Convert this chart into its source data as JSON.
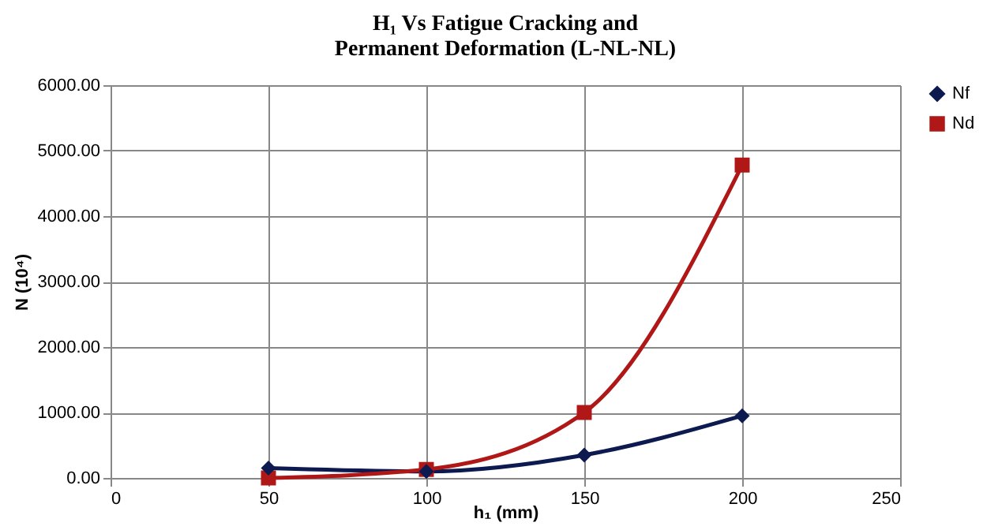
{
  "chart_data": {
    "type": "line",
    "title": "H₁ Vs Fatigue Cracking and Permanent Deformation (L-NL-NL)",
    "xlabel": "h₁ (mm)",
    "ylabel": "N (10⁴)",
    "x": [
      50,
      100,
      150,
      200
    ],
    "series": [
      {
        "name": "Nf",
        "color": "#0d1a4f",
        "marker": "diamond",
        "values": [
          150,
          100,
          350,
          950
        ]
      },
      {
        "name": "Nd",
        "color": "#b01818",
        "marker": "square",
        "values": [
          0,
          130,
          1000,
          4780
        ]
      }
    ],
    "xlim": [
      0,
      250
    ],
    "xticks": [
      0,
      50,
      100,
      150,
      200,
      250
    ],
    "ylim": [
      0,
      6000
    ],
    "yticks": [
      {
        "value": 0,
        "label": "0.00"
      },
      {
        "value": 1000,
        "label": "1000.00"
      },
      {
        "value": 2000,
        "label": "2000.00"
      },
      {
        "value": 3000,
        "label": "3000.00"
      },
      {
        "value": 4000,
        "label": "4000.00"
      },
      {
        "value": 5000,
        "label": "5000.00"
      },
      {
        "value": 6000,
        "label": "6000.00"
      }
    ],
    "grid": true,
    "legend": "right",
    "line_style": "solid"
  }
}
